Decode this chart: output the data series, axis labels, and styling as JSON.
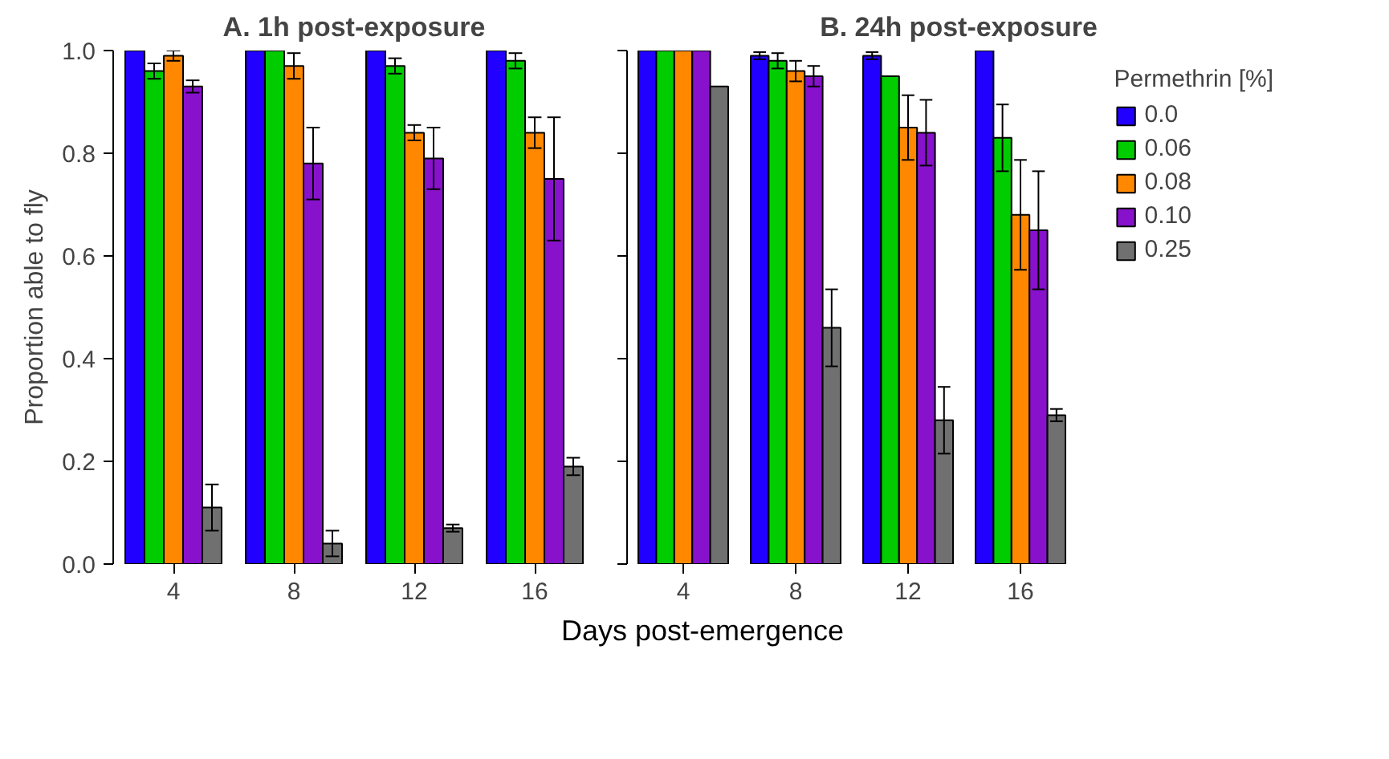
{
  "chart_data": [
    {
      "type": "bar",
      "title": "A. 1h post-exposure",
      "xlabel": "Days post-emergence",
      "ylabel": "Proportion able to fly",
      "categories": [
        "4",
        "8",
        "12",
        "16"
      ],
      "series": [
        {
          "color": "#2200ff",
          "values": [
            1.0,
            1.0,
            1.0,
            1.0
          ]
        },
        {
          "color": "#00cc00",
          "values": [
            0.96,
            1.0,
            0.97,
            0.98
          ],
          "errors": [
            0.015,
            null,
            0.015,
            0.015
          ]
        },
        {
          "color": "#ff8800",
          "values": [
            0.99,
            0.97,
            0.84,
            0.84
          ],
          "errors": [
            0.01,
            0.025,
            0.015,
            0.03
          ]
        },
        {
          "color": "#8811cc",
          "values": [
            0.93,
            0.78,
            0.79,
            0.75
          ],
          "errors": [
            0.012,
            0.07,
            0.06,
            0.12
          ]
        },
        {
          "color": "#707070",
          "values": [
            0.11,
            0.04,
            0.07,
            0.19
          ],
          "errors": [
            0.045,
            0.025,
            0.007,
            0.017
          ]
        }
      ],
      "ylim": [
        0,
        1
      ],
      "yticks": [
        {
          "value": 0,
          "label": "0.0"
        },
        {
          "value": 0.2,
          "label": "0.2"
        },
        {
          "value": 0.4,
          "label": "0.4"
        },
        {
          "value": 0.6,
          "label": "0.6"
        },
        {
          "value": 0.8,
          "label": "0.8"
        },
        {
          "value": 1,
          "label": "1.0"
        }
      ],
      "grid": false,
      "legend": false
    },
    {
      "type": "bar",
      "title": "B. 24h post-exposure",
      "legend_title": "Permethrin [%]",
      "categories": [
        "4",
        "8",
        "12",
        "16"
      ],
      "series": [
        {
          "name": "0.0",
          "color": "#2200ff",
          "values": [
            1.0,
            0.99,
            0.99,
            1.0
          ],
          "errors": [
            null,
            0.007,
            0.007,
            null
          ]
        },
        {
          "name": "0.06",
          "color": "#00cc00",
          "values": [
            1.0,
            0.98,
            0.95,
            0.83
          ],
          "errors": [
            null,
            0.015,
            null,
            0.065
          ]
        },
        {
          "name": "0.08",
          "color": "#ff8800",
          "values": [
            1.0,
            0.96,
            0.85,
            0.68
          ],
          "errors": [
            null,
            0.02,
            0.063,
            0.107
          ]
        },
        {
          "name": "0.10",
          "color": "#8811cc",
          "values": [
            1.0,
            0.95,
            0.84,
            0.65
          ],
          "errors": [
            null,
            0.02,
            0.064,
            0.115
          ]
        },
        {
          "name": "0.25",
          "color": "#707070",
          "values": [
            0.93,
            0.46,
            0.28,
            0.29
          ],
          "errors": [
            null,
            0.075,
            0.065,
            0.012
          ]
        }
      ],
      "ylim": [
        0,
        1
      ],
      "yticks": [
        {
          "value": 0,
          "label": null
        },
        {
          "value": 0.2,
          "label": null
        },
        {
          "value": 0.4,
          "label": null
        },
        {
          "value": 0.6,
          "label": null
        },
        {
          "value": 0.8,
          "label": null
        },
        {
          "value": 1,
          "label": null
        }
      ],
      "grid": false,
      "legend": "right",
      "tick_labels": "x"
    }
  ]
}
